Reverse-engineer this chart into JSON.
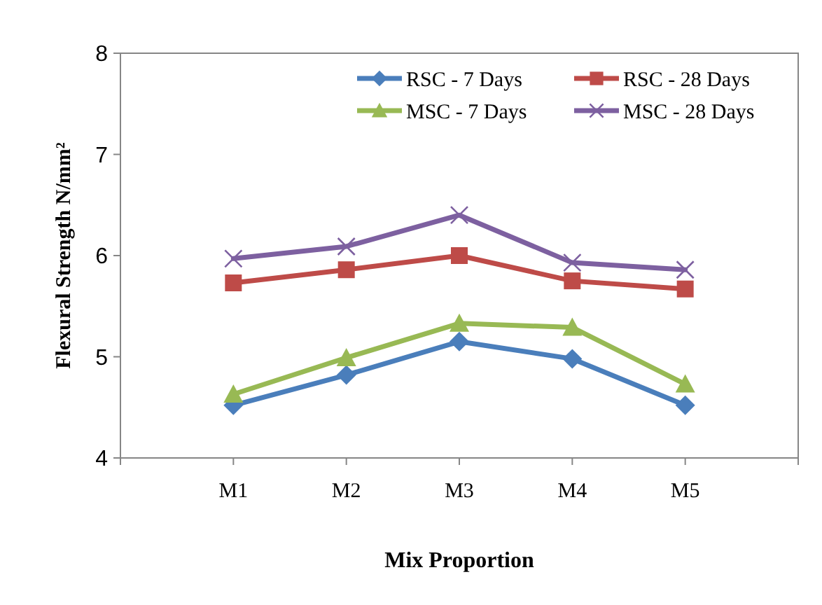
{
  "chart_data": {
    "type": "line",
    "xlabel": "Mix Proportion",
    "ylabel": "Flexural Strength N/mm²",
    "categories": [
      null,
      "M1",
      "M2",
      "M3",
      "M4",
      "M5",
      null
    ],
    "ylim": [
      4,
      8
    ],
    "yticks": [
      4,
      5,
      6,
      7,
      8
    ],
    "grid": false,
    "legend": "top right",
    "series": [
      {
        "name": "RSC - 7 Days",
        "color": "#4a7ebb",
        "marker": "diamond",
        "values": [
          null,
          4.52,
          4.82,
          5.15,
          4.98,
          4.52,
          null
        ]
      },
      {
        "name": "RSC - 28 Days",
        "color": "#be4b48",
        "marker": "square",
        "values": [
          null,
          5.73,
          5.86,
          6.0,
          5.75,
          5.67,
          null
        ]
      },
      {
        "name": "MSC - 7 Days",
        "color": "#98b954",
        "marker": "triangle",
        "values": [
          null,
          4.63,
          4.99,
          5.33,
          5.29,
          4.73,
          null
        ]
      },
      {
        "name": "MSC - 28 Days",
        "color": "#7d60a0",
        "marker": "cross",
        "values": [
          null,
          5.97,
          6.09,
          6.4,
          5.93,
          5.86,
          null
        ]
      }
    ]
  }
}
